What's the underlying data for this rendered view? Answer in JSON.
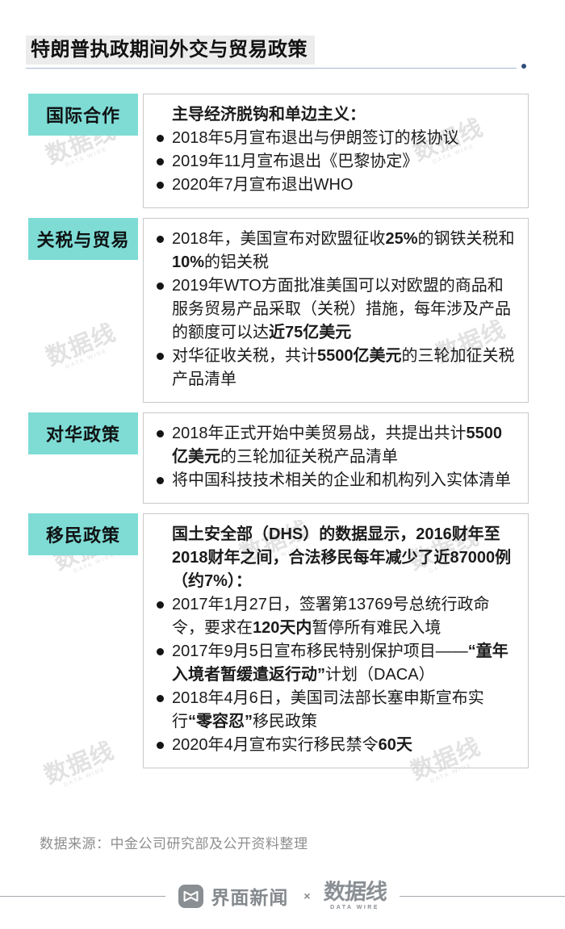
{
  "page": {
    "title": "特朗普执政期间外交与贸易政策",
    "source_note": "数据来源：中金公司研究部及公开资料整理"
  },
  "colors": {
    "section_label_bg": "#7edcd5",
    "title_highlight_bg": "#ececec",
    "underline": "#a7bbd3",
    "underline_dot": "#2e4d7b",
    "box_border": "#c9c9c9",
    "muted_text": "#8e8e8e",
    "footer_gray": "#8a8f94"
  },
  "sections": [
    {
      "label": "国际合作",
      "intro": [
        {
          "t": "主导经济脱钩和单边主义：",
          "b": true
        }
      ],
      "bullets": [
        [
          {
            "t": "2018年5月宣布退出与伊朗签订的核协议",
            "b": false
          }
        ],
        [
          {
            "t": "2019年11月宣布退出《巴黎协定》",
            "b": false
          }
        ],
        [
          {
            "t": "2020年7月宣布退出WHO",
            "b": false
          }
        ]
      ]
    },
    {
      "label": "关税与贸易",
      "intro": null,
      "bullets": [
        [
          {
            "t": "2018年，美国宣布对欧盟征收",
            "b": false
          },
          {
            "t": "25%",
            "b": true
          },
          {
            "t": "的钢铁关税和",
            "b": false
          },
          {
            "t": "10%",
            "b": true
          },
          {
            "t": "的铝关税",
            "b": false
          }
        ],
        [
          {
            "t": "2019年WTO方面批准美国可以对欧盟的商品和服务贸易产品采取（关税）措施，每年涉及产品的额度可以达",
            "b": false
          },
          {
            "t": "近75亿美元",
            "b": true
          }
        ],
        [
          {
            "t": "对华征收关税，共计",
            "b": false
          },
          {
            "t": "5500亿美元",
            "b": true
          },
          {
            "t": "的三轮加征关税产品清单",
            "b": false
          }
        ]
      ]
    },
    {
      "label": "对华政策",
      "intro": null,
      "bullets": [
        [
          {
            "t": "2018年正式开始中美贸易战，共提出共计",
            "b": false
          },
          {
            "t": "5500亿美元",
            "b": true
          },
          {
            "t": "的三轮加征关税产品清单",
            "b": false
          }
        ],
        [
          {
            "t": "将中国科技技术相关的企业和机构列入实体清单",
            "b": false
          }
        ]
      ]
    },
    {
      "label": "移民政策",
      "intro": [
        {
          "t": "国土安全部（DHS）的数据显示，2016财年至2018财年之间，合法移民每年减少了近87000例（约7%）：",
          "b": true
        }
      ],
      "bullets": [
        [
          {
            "t": "2017年1月27日，签署第13769号总统行政命令，要求在",
            "b": false
          },
          {
            "t": "120天内",
            "b": true
          },
          {
            "t": "暂停所有难民入境",
            "b": false
          }
        ],
        [
          {
            "t": "2017年9月5日宣布移民特别保护项目——",
            "b": false
          },
          {
            "t": "“童年入境者暂缓遣返行动”",
            "b": true
          },
          {
            "t": "计划（DACA）",
            "b": false
          }
        ],
        [
          {
            "t": "2018年4月6日，美国司法部长塞申斯宣布实行",
            "b": false
          },
          {
            "t": "“零容忍”",
            "b": true
          },
          {
            "t": "移民政策",
            "b": false
          }
        ],
        [
          {
            "t": "2020年4月宣布实行移民禁令",
            "b": false
          },
          {
            "t": "60天",
            "b": true
          }
        ]
      ]
    }
  ],
  "footer": {
    "jiemian_label": "界面新闻",
    "separator": "×",
    "datawire_label": "数据线",
    "datawire_caption": "DATA WIRE"
  },
  "watermark": {
    "text": "数据线",
    "caption": "DATA WIRE"
  }
}
